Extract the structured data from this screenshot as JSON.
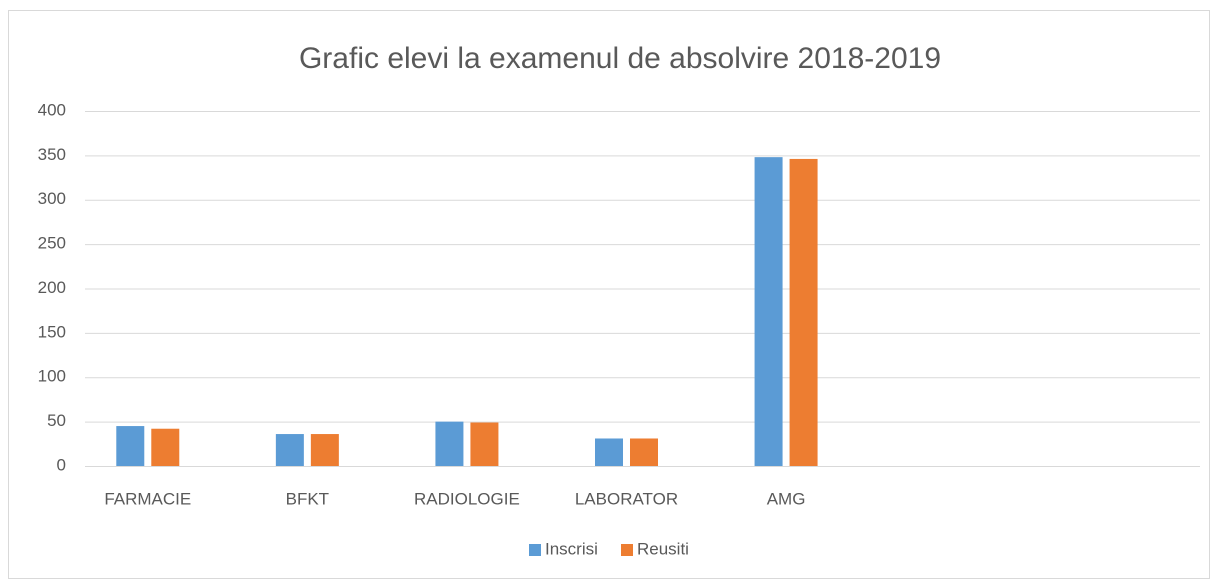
{
  "chart_data": {
    "type": "bar",
    "title": "Grafic elevi la examenul de absolvire 2018-2019",
    "categories": [
      "FARMACIE",
      "BFKT",
      "RADIOLOGIE",
      "LABORATOR",
      "AMG",
      null,
      null
    ],
    "series": [
      {
        "name": "Inscrisi",
        "color": "#5b9bd5",
        "values": [
          45,
          36,
          50,
          31,
          348,
          null,
          null
        ]
      },
      {
        "name": "Reusiti",
        "color": "#ed7d31",
        "values": [
          42,
          36,
          49,
          31,
          346,
          null,
          null
        ]
      }
    ],
    "ylim": [
      0,
      400
    ],
    "yticks": [
      0,
      50,
      100,
      150,
      200,
      250,
      300,
      350,
      400
    ],
    "grid": true,
    "legend": "bottom"
  }
}
